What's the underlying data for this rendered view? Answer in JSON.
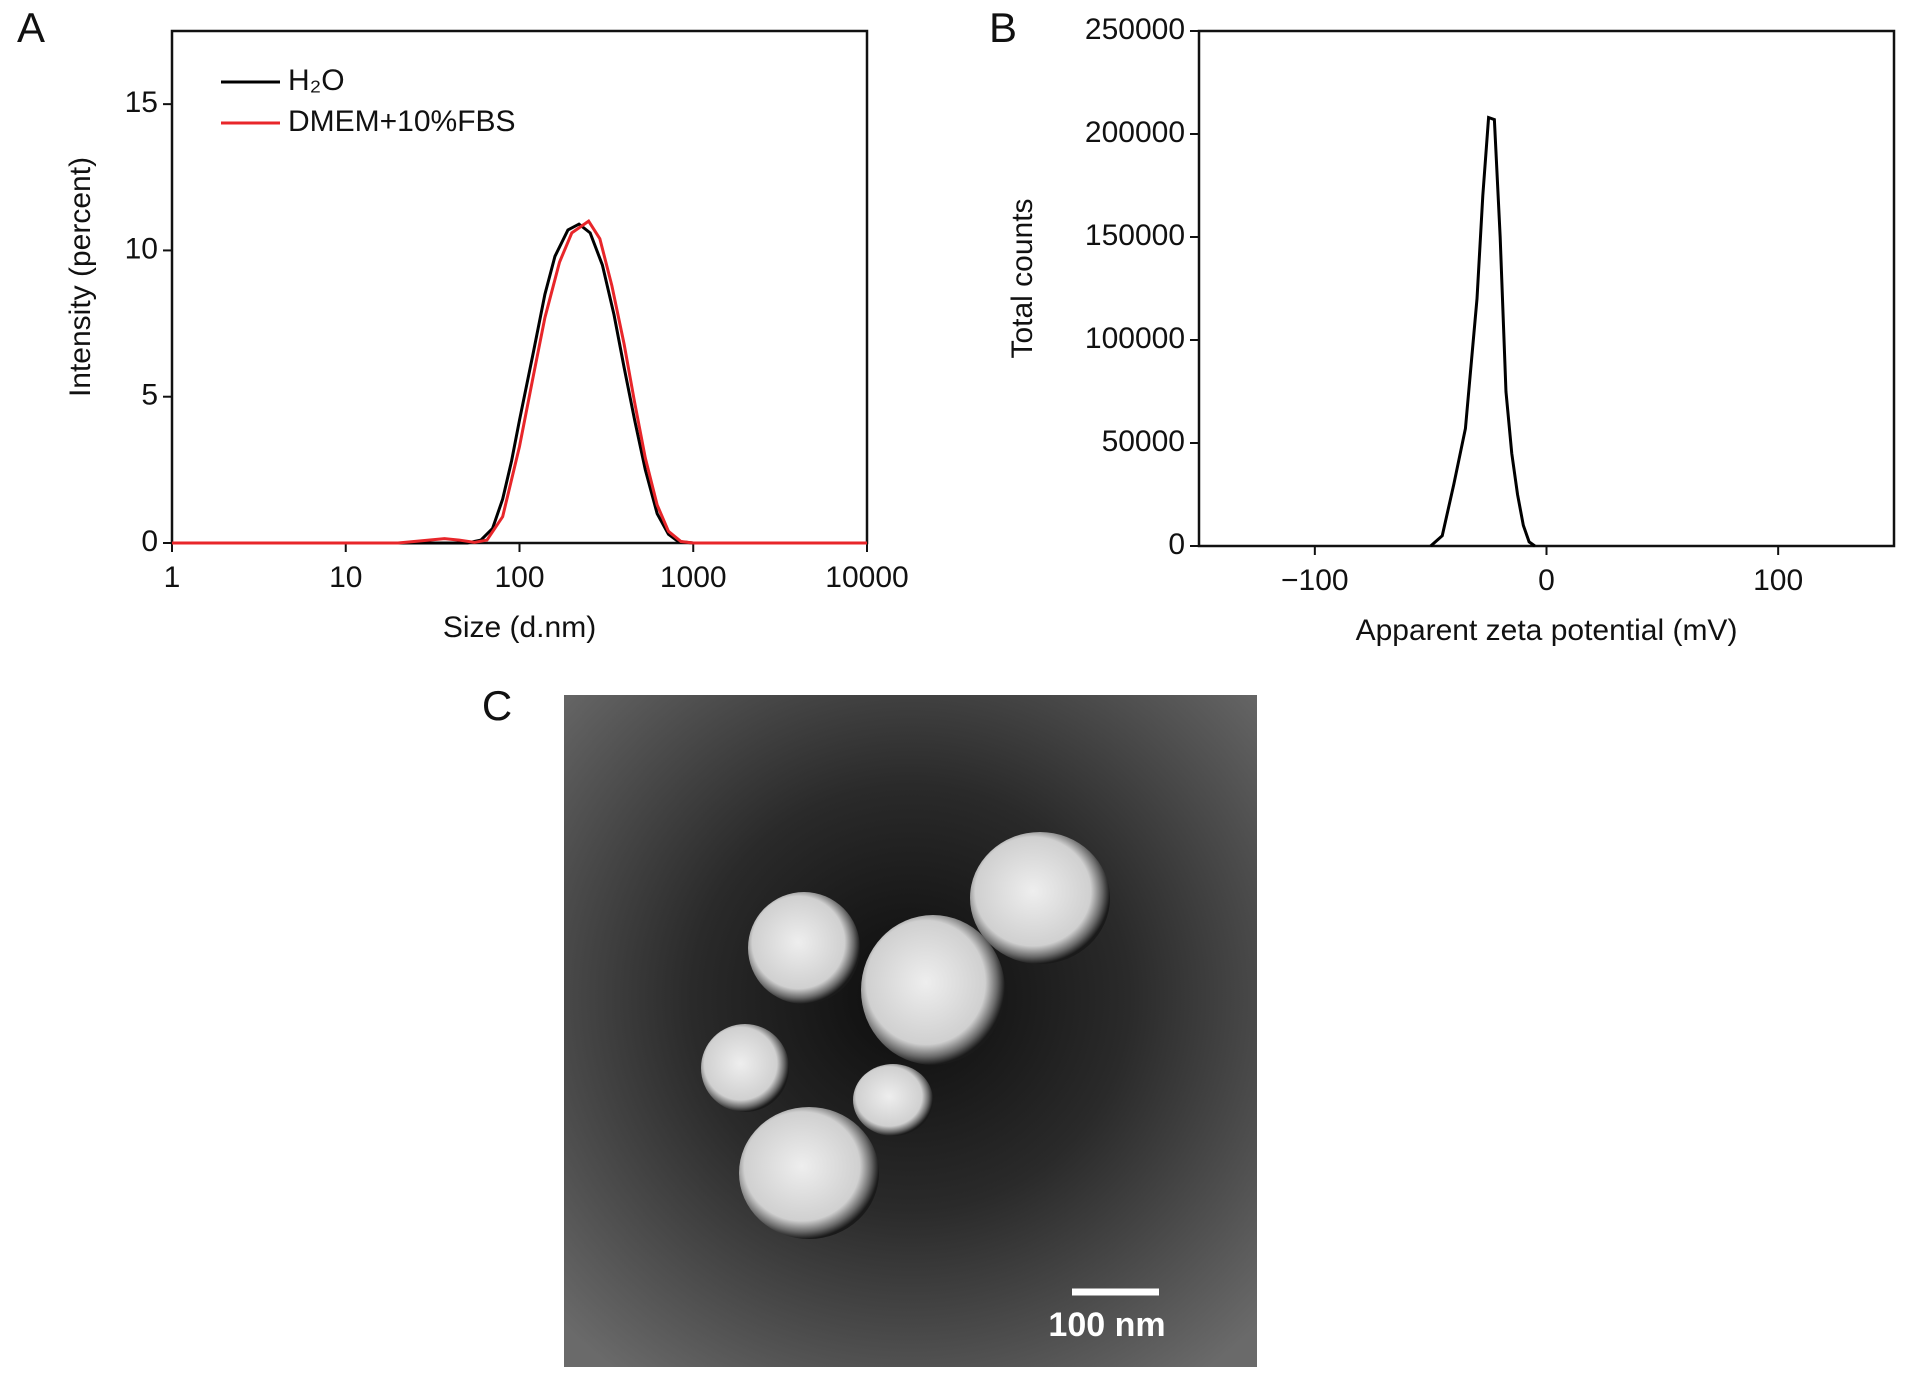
{
  "chart_data": [
    {
      "type": "line",
      "panel_label": "A",
      "xlabel": "Size (d.nm)",
      "ylabel": "Intensity (percent)",
      "xscale": "log",
      "xlim": [
        1,
        10000
      ],
      "xticks": [
        1,
        10,
        100,
        1000,
        10000
      ],
      "ylim": [
        0,
        17.5
      ],
      "yticks": [
        0,
        5,
        10,
        15
      ],
      "legend": "upper left",
      "frame": true,
      "series": [
        {
          "name": "H₂O",
          "color": "#000000",
          "x": [
            1,
            50,
            60,
            70,
            80,
            90,
            100,
            120,
            140,
            160,
            190,
            220,
            255,
            300,
            350,
            400,
            460,
            530,
            620,
            720,
            820,
            1000,
            10000
          ],
          "values": [
            0,
            0,
            0.1,
            0.5,
            1.5,
            2.8,
            4.2,
            6.5,
            8.5,
            9.8,
            10.7,
            10.9,
            10.6,
            9.5,
            7.8,
            6,
            4.2,
            2.5,
            1.0,
            0.3,
            0.05,
            0,
            0
          ]
        },
        {
          "name": "DMEM+10%FBS",
          "color": "#e8262a",
          "x": [
            1,
            20,
            30,
            37,
            45,
            55,
            65,
            80,
            100,
            120,
            140,
            170,
            200,
            250,
            290,
            340,
            400,
            460,
            530,
            620,
            720,
            850,
            1000,
            10000
          ],
          "values": [
            0,
            0,
            0.1,
            0.15,
            0.1,
            0.02,
            0.1,
            0.9,
            3.3,
            5.7,
            7.7,
            9.6,
            10.6,
            11.0,
            10.4,
            8.8,
            6.8,
            4.8,
            2.9,
            1.3,
            0.4,
            0.05,
            0,
            0
          ]
        }
      ]
    },
    {
      "type": "line",
      "panel_label": "B",
      "xlabel": "Apparent zeta potential (mV)",
      "ylabel": "Total counts",
      "xscale": "linear",
      "xlim": [
        -150,
        150
      ],
      "xticks": [
        {
          "value": -100,
          "label": "−100"
        },
        0,
        100
      ],
      "ylim": [
        0,
        250000
      ],
      "yticks": [
        0,
        50000,
        100000,
        150000,
        200000,
        250000
      ],
      "frame": true,
      "series": [
        {
          "color": "#000000",
          "x": [
            -50,
            -45,
            -40,
            -35,
            -30,
            -27.5,
            -25,
            -22.5,
            -20,
            -17.5,
            -15,
            -12.5,
            -10,
            -7.5,
            -5
          ],
          "values": [
            0,
            5000,
            30000,
            57000,
            120000,
            170000,
            208000,
            207000,
            150000,
            75000,
            45000,
            25000,
            10000,
            2000,
            0
          ]
        }
      ]
    }
  ],
  "image": {
    "panel_label": "C",
    "scale_bar": "100 nm"
  }
}
